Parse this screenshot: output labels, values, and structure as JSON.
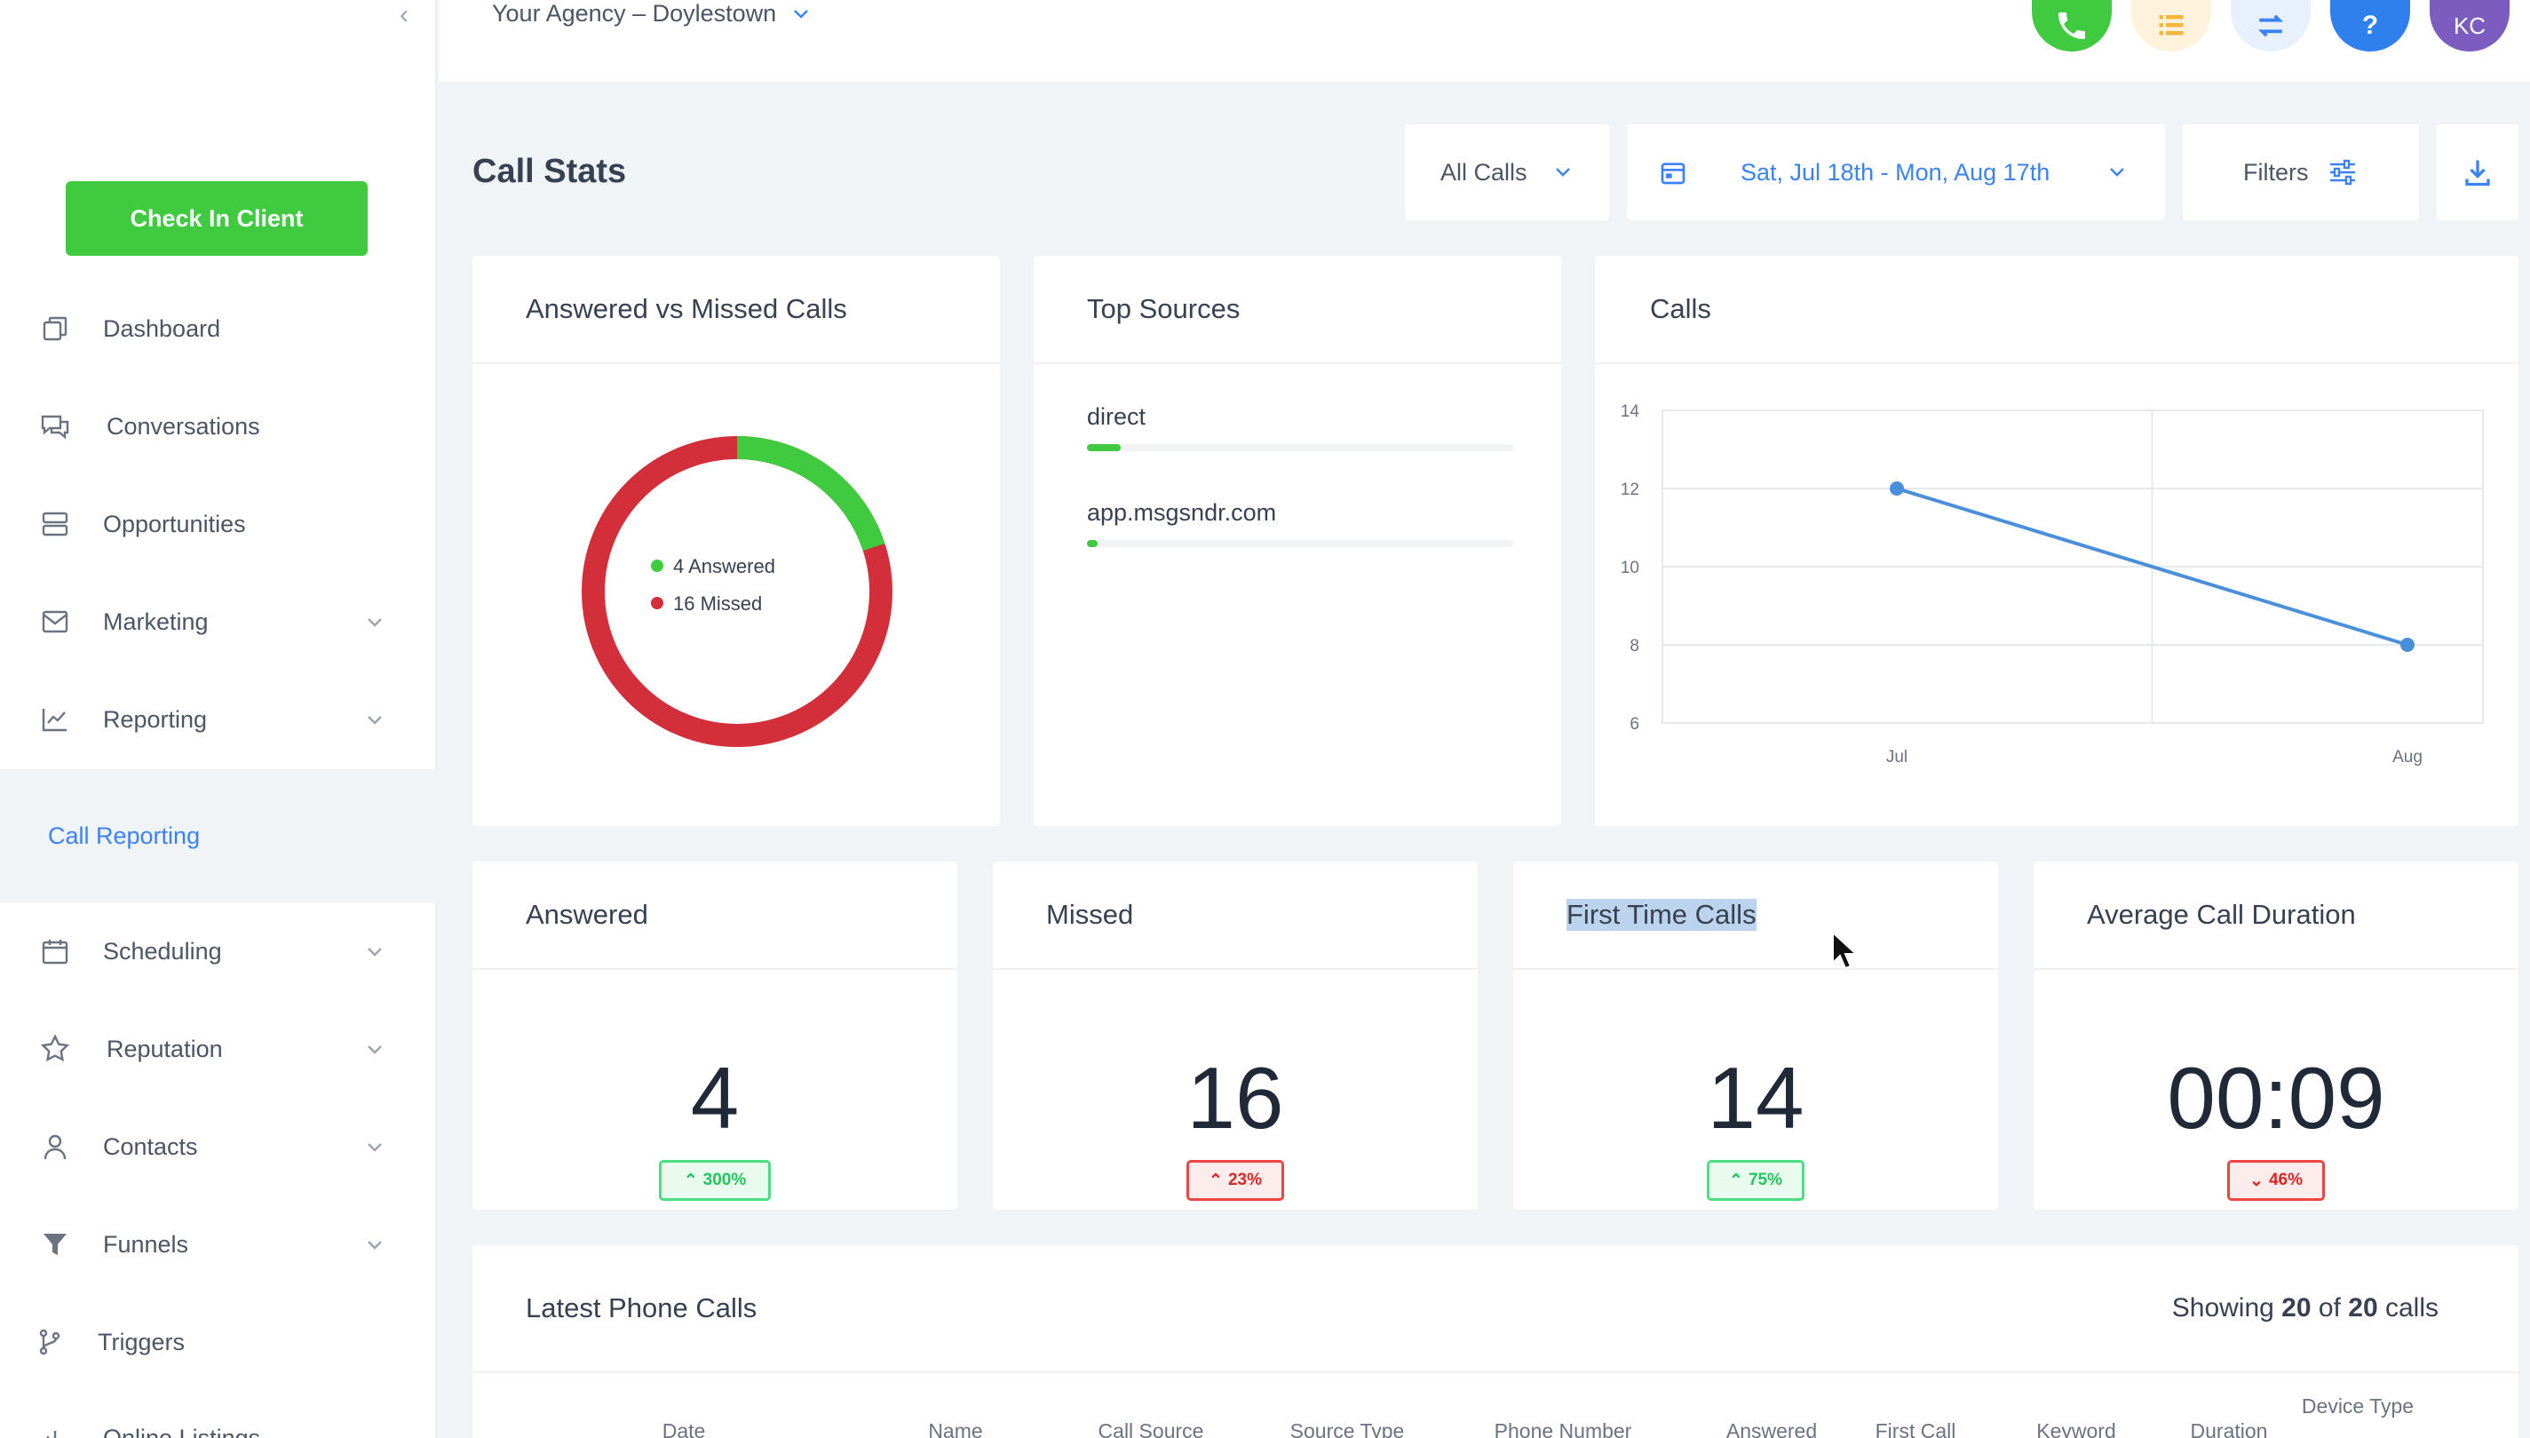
{
  "sidebar": {
    "check_in_label": "Check In Client",
    "items": [
      {
        "label": "Dashboard",
        "icon": "copy-icon"
      },
      {
        "label": "Conversations",
        "icon": "chat-icon"
      },
      {
        "label": "Opportunities",
        "icon": "stack-icon"
      },
      {
        "label": "Marketing",
        "icon": "mail-icon"
      },
      {
        "label": "Reporting",
        "icon": "chart-icon"
      },
      {
        "label": "Call Reporting"
      },
      {
        "label": "Scheduling",
        "icon": "calendar-icon"
      },
      {
        "label": "Reputation",
        "icon": "star-icon"
      },
      {
        "label": "Contacts",
        "icon": "user-icon"
      },
      {
        "label": "Funnels",
        "icon": "funnel-icon"
      },
      {
        "label": "Triggers",
        "icon": "branch-icon"
      },
      {
        "label": "Online Listings",
        "icon": "listing-icon"
      }
    ]
  },
  "topbar": {
    "agency": "Your Agency – Doylestown",
    "avatar_initials": "KC",
    "colors": {
      "phone": "#3fca3f",
      "tasks": "#fdf3dc",
      "switch": "#e8f1fb",
      "help": "#2f80ed",
      "avatar": "#7c5cbf"
    }
  },
  "page": {
    "title": "Call Stats",
    "call_filter": "All Calls",
    "date_range": "Sat, Jul 18th - Mon, Aug 17th",
    "filters_label": "Filters"
  },
  "donut": {
    "title": "Answered vs Missed Calls",
    "answered": 4,
    "missed": 16,
    "answered_label": "4 Answered",
    "missed_label": "16 Missed",
    "colors": {
      "answered": "#3fca3f",
      "missed": "#d32f3a"
    }
  },
  "top_sources": {
    "title": "Top Sources",
    "items": [
      {
        "name": "direct",
        "share": 0.08
      },
      {
        "name": "app.msgsndr.com",
        "share": 0.025
      }
    ]
  },
  "chart_data": {
    "type": "line",
    "title": "Calls",
    "categories": [
      "Jul",
      "Aug"
    ],
    "series": [
      {
        "values": [
          12,
          8
        ]
      }
    ],
    "y_ticks": [
      "14",
      "12",
      "10",
      "8",
      "6"
    ],
    "ylim": [
      6,
      14
    ],
    "grid": true,
    "color": "#4a8fdc"
  },
  "stats": [
    {
      "label": "Answered",
      "value": "4",
      "change": "300%",
      "direction": "up",
      "tone": "good"
    },
    {
      "label": "Missed",
      "value": "16",
      "change": "23%",
      "direction": "up",
      "tone": "bad"
    },
    {
      "label": "First Time Calls",
      "value": "14",
      "change": "75%",
      "direction": "up",
      "tone": "good"
    },
    {
      "label": "Average Call Duration",
      "value": "00:09",
      "change": "46%",
      "direction": "down",
      "tone": "bad"
    }
  ],
  "latest_calls": {
    "title": "Latest Phone Calls",
    "showing_prefix": "Showing",
    "showing_count": "20",
    "showing_of": "of",
    "showing_total": "20",
    "showing_suffix": "calls",
    "columns": [
      "Date",
      "Name",
      "Call Source",
      "Source Type",
      "Phone Number",
      "Answered",
      "First Call",
      "Keyword",
      "Duration",
      "Device Type"
    ]
  }
}
